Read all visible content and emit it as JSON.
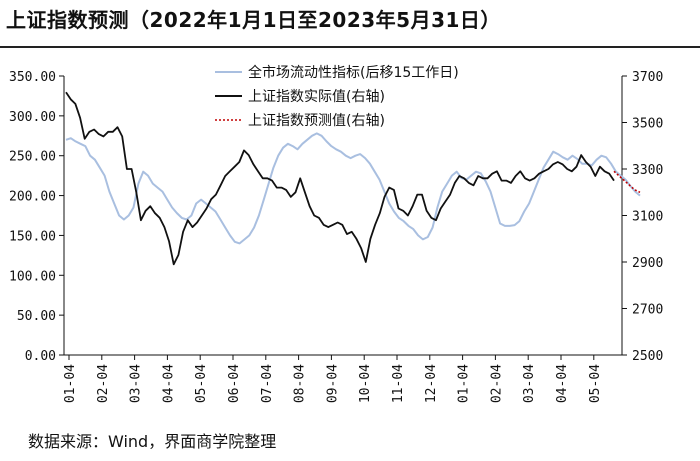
{
  "title": "上证指数预测（2022年1月1日至2023年5月31日）",
  "source": "数据来源：Wind，界面商学院整理",
  "chart_data": {
    "type": "line",
    "left_axis": {
      "ylim": [
        0,
        350
      ],
      "ticks": [
        "0.00",
        "50.00",
        "100.00",
        "150.00",
        "200.00",
        "250.00",
        "300.00",
        "350.00"
      ]
    },
    "right_axis": {
      "ylim": [
        2500,
        3700
      ],
      "ticks": [
        "2500",
        "2700",
        "2900",
        "3100",
        "3300",
        "3500",
        "3700"
      ]
    },
    "x_ticks": [
      "01-04",
      "02-04",
      "03-04",
      "04-04",
      "05-04",
      "06-04",
      "07-04",
      "08-04",
      "09-04",
      "10-04",
      "11-04",
      "12-04",
      "01-04",
      "02-04",
      "03-04",
      "04-04",
      "05-04"
    ],
    "legend_position": "top-center",
    "series": [
      {
        "name": "全市场流动性指标(后移15工作日)",
        "axis": "left",
        "color": "#a9bfe0",
        "style": "solid",
        "values": [
          270,
          272,
          268,
          265,
          262,
          250,
          245,
          235,
          225,
          205,
          190,
          175,
          170,
          175,
          185,
          215,
          230,
          225,
          215,
          210,
          205,
          195,
          185,
          178,
          172,
          170,
          175,
          190,
          195,
          190,
          185,
          180,
          170,
          160,
          150,
          142,
          140,
          145,
          150,
          160,
          175,
          195,
          215,
          235,
          250,
          260,
          265,
          262,
          258,
          265,
          270,
          275,
          278,
          275,
          268,
          262,
          258,
          255,
          250,
          247,
          250,
          252,
          247,
          240,
          230,
          220,
          205,
          190,
          180,
          172,
          168,
          162,
          158,
          150,
          145,
          148,
          160,
          185,
          205,
          215,
          225,
          230,
          222,
          220,
          225,
          230,
          228,
          218,
          205,
          185,
          165,
          162,
          162,
          163,
          168,
          180,
          190,
          205,
          220,
          235,
          245,
          255,
          252,
          248,
          245,
          250,
          246,
          240,
          240,
          238,
          245,
          250,
          248,
          240,
          230,
          225,
          220,
          212,
          205,
          200
        ]
      },
      {
        "name": "上证指数实际值(右轴)",
        "axis": "right",
        "color": "#111111",
        "style": "solid",
        "values": [
          3630,
          3600,
          3580,
          3520,
          3430,
          3460,
          3470,
          3450,
          3440,
          3460,
          3460,
          3480,
          3440,
          3300,
          3300,
          3200,
          3080,
          3120,
          3140,
          3110,
          3090,
          3050,
          2990,
          2890,
          2930,
          3030,
          3080,
          3050,
          3070,
          3100,
          3130,
          3170,
          3190,
          3230,
          3270,
          3290,
          3310,
          3330,
          3380,
          3360,
          3320,
          3290,
          3260,
          3260,
          3250,
          3220,
          3220,
          3210,
          3180,
          3200,
          3260,
          3200,
          3140,
          3100,
          3090,
          3060,
          3050,
          3060,
          3070,
          3060,
          3020,
          3030,
          3000,
          2960,
          2900,
          3000,
          3060,
          3110,
          3180,
          3220,
          3210,
          3130,
          3120,
          3100,
          3140,
          3190,
          3190,
          3120,
          3090,
          3080,
          3130,
          3160,
          3190,
          3240,
          3270,
          3260,
          3240,
          3230,
          3270,
          3260,
          3260,
          3280,
          3290,
          3250,
          3250,
          3240,
          3270,
          3290,
          3260,
          3250,
          3260,
          3280,
          3290,
          3300,
          3320,
          3330,
          3320,
          3300,
          3290,
          3310,
          3360,
          3330,
          3310,
          3270,
          3310,
          3290,
          3280,
          3250
        ]
      },
      {
        "name": "上证指数预测值(右轴)",
        "axis": "right",
        "color": "#c00000",
        "style": "dotted",
        "values": [
          3290,
          3270,
          3250,
          3230,
          3210,
          3200
        ]
      }
    ]
  }
}
